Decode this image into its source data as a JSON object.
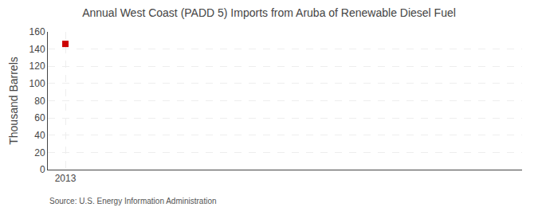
{
  "chart_data": {
    "type": "scatter",
    "title": "Annual West Coast (PADD 5) Imports from Aruba of Renewable Diesel Fuel",
    "y_label": "Thousand Barrels",
    "annotations": [
      "Source: U.S. Energy Information Administration"
    ],
    "x": [
      2013
    ],
    "values": [
      146
    ],
    "color": "#cc0000",
    "marker": "square",
    "xlim": [
      2012.6,
      2023.4
    ],
    "xticks": [
      2013
    ],
    "ylim": [
      0,
      160
    ],
    "yticks": [
      0,
      20,
      40,
      60,
      80,
      100,
      120,
      140,
      160
    ],
    "grid": true
  }
}
